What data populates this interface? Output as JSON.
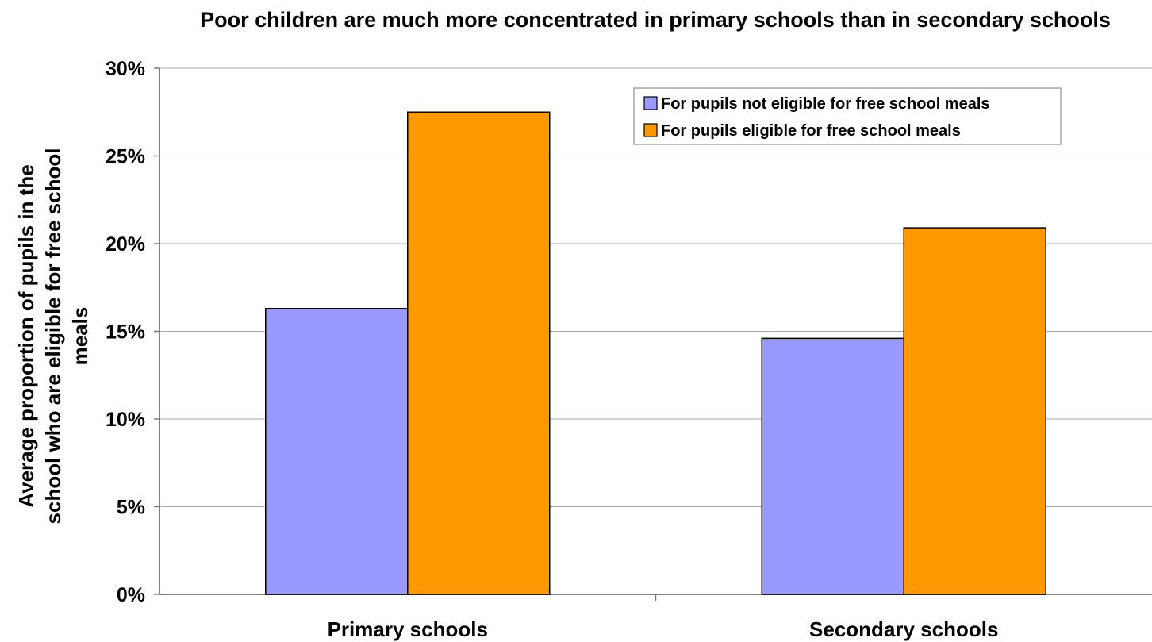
{
  "chart_data": {
    "type": "bar",
    "title": "Poor children are much more concentrated in primary schools than in secondary schools",
    "xlabel": "",
    "ylabel": "Average proportion of pupils in the school who are eligible for free school meals",
    "ylabel_lines": [
      "Average proportion of pupils in the",
      "school who are eligible for free school",
      "meals"
    ],
    "categories": [
      "Primary schools",
      "Secondary schools"
    ],
    "series": [
      {
        "name": "For pupils not eligible for free school meals",
        "values": [
          16.3,
          14.6
        ],
        "color": "#9999ff"
      },
      {
        "name": "For pupils eligible for free school meals",
        "values": [
          27.5,
          20.9
        ],
        "color": "#ff9900"
      }
    ],
    "ylim": [
      0,
      30
    ],
    "yticks": [
      0,
      5,
      10,
      15,
      20,
      25,
      30
    ],
    "ytick_labels": [
      "0%",
      "5%",
      "10%",
      "15%",
      "20%",
      "25%",
      "30%"
    ],
    "grid": true,
    "legend_position": "top-right",
    "plot_background": "#ffffff"
  }
}
